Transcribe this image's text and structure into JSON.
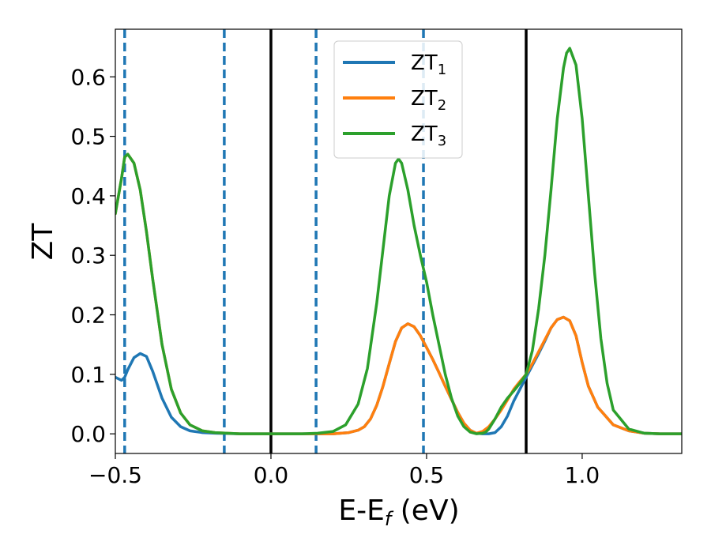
{
  "chart_data": {
    "type": "line",
    "title": "",
    "xlabel": {
      "base": "E-E",
      "sub": "f",
      "rest": " (eV)"
    },
    "ylabel": "ZT",
    "xlim": [
      -0.5,
      1.32
    ],
    "ylim": [
      -0.033,
      0.68
    ],
    "grid": false,
    "legend_position": "top-center",
    "x_ticks": [
      {
        "value": -0.5,
        "label": "−0.5"
      },
      {
        "value": 0.0,
        "label": "0.0"
      },
      {
        "value": 0.5,
        "label": "0.5"
      },
      {
        "value": 1.0,
        "label": "1.0"
      }
    ],
    "y_ticks": [
      {
        "value": 0.0,
        "label": "0.0"
      },
      {
        "value": 0.1,
        "label": "0.1"
      },
      {
        "value": 0.2,
        "label": "0.2"
      },
      {
        "value": 0.3,
        "label": "0.3"
      },
      {
        "value": 0.4,
        "label": "0.4"
      },
      {
        "value": 0.5,
        "label": "0.5"
      },
      {
        "value": 0.6,
        "label": "0.6"
      }
    ],
    "vlines_dashed": {
      "color": "#1f77b4",
      "x": [
        -0.47,
        -0.15,
        0.145,
        0.49
      ]
    },
    "vlines_solid": {
      "color": "#000000",
      "x": [
        0.0,
        0.82
      ]
    },
    "series": [
      {
        "name": "ZT1",
        "label_base": "ZT",
        "label_sub": "1",
        "color": "#1f77b4",
        "x": [
          -0.5,
          -0.48,
          -0.47,
          -0.46,
          -0.44,
          -0.42,
          -0.4,
          -0.38,
          -0.35,
          -0.32,
          -0.29,
          -0.26,
          -0.22,
          -0.18,
          -0.1,
          0.0,
          0.1,
          0.2,
          0.25,
          0.28,
          0.3,
          0.32,
          0.34,
          0.36,
          0.38,
          0.4,
          0.42,
          0.44,
          0.46,
          0.48,
          0.5,
          0.52,
          0.54,
          0.56,
          0.58,
          0.6,
          0.62,
          0.64,
          0.66,
          0.68,
          0.7,
          0.72,
          0.74,
          0.76,
          0.78,
          0.8,
          0.82,
          0.84,
          0.86,
          0.88,
          0.9,
          0.92,
          0.94,
          0.96,
          0.98,
          1.0,
          1.02,
          1.05,
          1.1,
          1.15,
          1.2,
          1.25,
          1.32
        ],
        "y": [
          0.095,
          0.09,
          0.095,
          0.108,
          0.128,
          0.135,
          0.13,
          0.105,
          0.06,
          0.028,
          0.012,
          0.005,
          0.002,
          0.001,
          0.0,
          0.0,
          0.0,
          0.0,
          0.002,
          0.006,
          0.012,
          0.025,
          0.048,
          0.08,
          0.118,
          0.155,
          0.178,
          0.185,
          0.18,
          0.165,
          0.145,
          0.125,
          0.103,
          0.08,
          0.058,
          0.036,
          0.018,
          0.006,
          0.001,
          0.0,
          0.0,
          0.002,
          0.012,
          0.03,
          0.055,
          0.075,
          0.095,
          0.115,
          0.135,
          0.156,
          0.178,
          0.192,
          0.196,
          0.19,
          0.165,
          0.12,
          0.08,
          0.045,
          0.015,
          0.005,
          0.001,
          0.0,
          0.0
        ]
      },
      {
        "name": "ZT2",
        "label_base": "ZT",
        "label_sub": "2",
        "color": "#ff7f0e",
        "x": [
          -0.5,
          -0.48,
          -0.47,
          -0.46,
          -0.44,
          -0.42,
          -0.4,
          -0.38,
          -0.35,
          -0.32,
          -0.29,
          -0.26,
          -0.22,
          -0.18,
          -0.1,
          0.0,
          0.1,
          0.2,
          0.25,
          0.28,
          0.3,
          0.32,
          0.34,
          0.36,
          0.38,
          0.4,
          0.42,
          0.44,
          0.46,
          0.48,
          0.5,
          0.52,
          0.54,
          0.56,
          0.58,
          0.6,
          0.62,
          0.64,
          0.66,
          0.68,
          0.7,
          0.72,
          0.74,
          0.76,
          0.78,
          0.8,
          0.82,
          0.84,
          0.86,
          0.88,
          0.9,
          0.92,
          0.94,
          0.96,
          0.98,
          1.0,
          1.02,
          1.05,
          1.1,
          1.15,
          1.2,
          1.25,
          1.32
        ],
        "y": [
          0.37,
          0.43,
          0.465,
          0.47,
          0.455,
          0.41,
          0.34,
          0.26,
          0.15,
          0.075,
          0.035,
          0.015,
          0.005,
          0.002,
          0.0,
          0.0,
          0.0,
          0.0,
          0.002,
          0.006,
          0.012,
          0.025,
          0.048,
          0.08,
          0.118,
          0.155,
          0.178,
          0.185,
          0.18,
          0.165,
          0.145,
          0.125,
          0.103,
          0.08,
          0.058,
          0.036,
          0.018,
          0.006,
          0.001,
          0.004,
          0.012,
          0.025,
          0.04,
          0.057,
          0.075,
          0.088,
          0.1,
          0.118,
          0.138,
          0.158,
          0.178,
          0.192,
          0.196,
          0.19,
          0.165,
          0.12,
          0.08,
          0.045,
          0.015,
          0.005,
          0.001,
          0.0,
          0.0
        ]
      },
      {
        "name": "ZT3",
        "label_base": "ZT",
        "label_sub": "3",
        "color": "#2ca02c",
        "x": [
          -0.5,
          -0.48,
          -0.47,
          -0.46,
          -0.44,
          -0.42,
          -0.4,
          -0.38,
          -0.35,
          -0.32,
          -0.29,
          -0.26,
          -0.22,
          -0.18,
          -0.1,
          0.0,
          0.1,
          0.15,
          0.2,
          0.24,
          0.28,
          0.31,
          0.34,
          0.36,
          0.38,
          0.4,
          0.41,
          0.42,
          0.44,
          0.46,
          0.48,
          0.5,
          0.52,
          0.54,
          0.56,
          0.58,
          0.6,
          0.62,
          0.64,
          0.66,
          0.68,
          0.69,
          0.7,
          0.72,
          0.74,
          0.76,
          0.78,
          0.8,
          0.82,
          0.84,
          0.86,
          0.88,
          0.9,
          0.92,
          0.94,
          0.95,
          0.96,
          0.98,
          1.0,
          1.02,
          1.04,
          1.06,
          1.08,
          1.1,
          1.15,
          1.2,
          1.25,
          1.32
        ],
        "y": [
          0.37,
          0.43,
          0.465,
          0.47,
          0.455,
          0.41,
          0.34,
          0.26,
          0.15,
          0.075,
          0.035,
          0.015,
          0.005,
          0.002,
          0.0,
          0.0,
          0.0,
          0.001,
          0.004,
          0.015,
          0.05,
          0.11,
          0.22,
          0.31,
          0.4,
          0.455,
          0.462,
          0.455,
          0.41,
          0.35,
          0.3,
          0.255,
          0.2,
          0.15,
          0.1,
          0.06,
          0.03,
          0.012,
          0.003,
          0.0,
          0.001,
          0.003,
          0.008,
          0.025,
          0.045,
          0.06,
          0.072,
          0.085,
          0.1,
          0.14,
          0.21,
          0.3,
          0.41,
          0.53,
          0.615,
          0.64,
          0.648,
          0.62,
          0.53,
          0.4,
          0.27,
          0.16,
          0.085,
          0.04,
          0.008,
          0.001,
          0.0,
          0.0
        ]
      }
    ]
  }
}
